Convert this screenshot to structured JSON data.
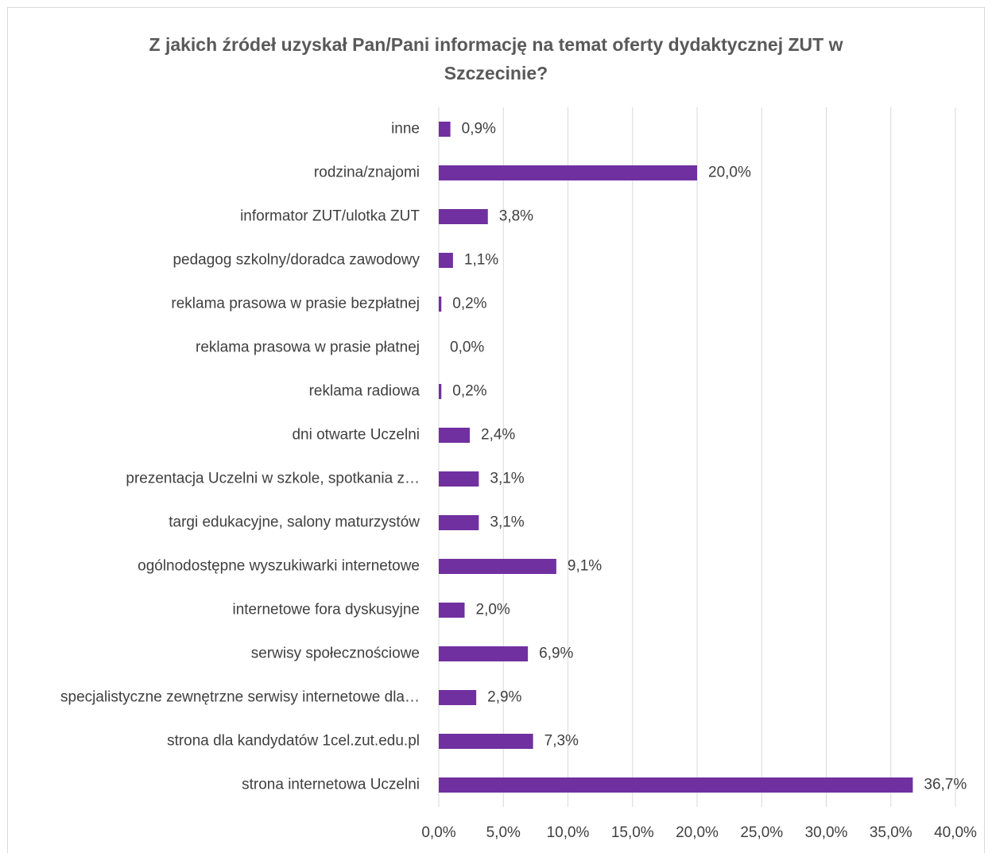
{
  "chart_data": {
    "type": "bar",
    "orientation": "horizontal",
    "title": "Z jakich źródeł uzyskał Pan/Pani informację na temat oferty dydaktycznej ZUT w Szczecinie?",
    "categories": [
      "inne",
      "rodzina/znajomi",
      "informator ZUT/ulotka ZUT",
      "pedagog szkolny/doradca zawodowy",
      "reklama prasowa w prasie bezpłatnej",
      "reklama prasowa w prasie płatnej",
      "reklama radiowa",
      "dni otwarte Uczelni",
      "prezentacja Uczelni w szkole, spotkania z…",
      "targi edukacyjne, salony maturzystów",
      "ogólnodostępne wyszukiwarki internetowe",
      "internetowe fora dyskusyjne",
      "serwisy społecznościowe",
      "specjalistyczne zewnętrzne serwisy internetowe dla…",
      "strona dla kandydatów 1cel.zut.edu.pl",
      "strona internetowa Uczelni"
    ],
    "values": [
      0.9,
      20.0,
      3.8,
      1.1,
      0.2,
      0.0,
      0.2,
      2.4,
      3.1,
      3.1,
      9.1,
      2.0,
      6.9,
      2.9,
      7.3,
      36.7
    ],
    "value_labels": [
      "0,9%",
      "20,0%",
      "3,8%",
      "1,1%",
      "0,2%",
      "0,0%",
      "0,2%",
      "2,4%",
      "3,1%",
      "3,1%",
      "9,1%",
      "2,0%",
      "6,9%",
      "2,9%",
      "7,3%",
      "36,7%"
    ],
    "color": "#7030a0",
    "xlim": [
      0,
      40
    ],
    "xticks": [
      {
        "value": 0,
        "label": "0,0%"
      },
      {
        "value": 5,
        "label": "5,0%"
      },
      {
        "value": 10,
        "label": "10,0%"
      },
      {
        "value": 15,
        "label": "15,0%"
      },
      {
        "value": 20,
        "label": "20,0%"
      },
      {
        "value": 25,
        "label": "25,0%"
      },
      {
        "value": 30,
        "label": "30,0%"
      },
      {
        "value": 35,
        "label": "35,0%"
      },
      {
        "value": 40,
        "label": "40,0%"
      }
    ],
    "grid": true
  }
}
